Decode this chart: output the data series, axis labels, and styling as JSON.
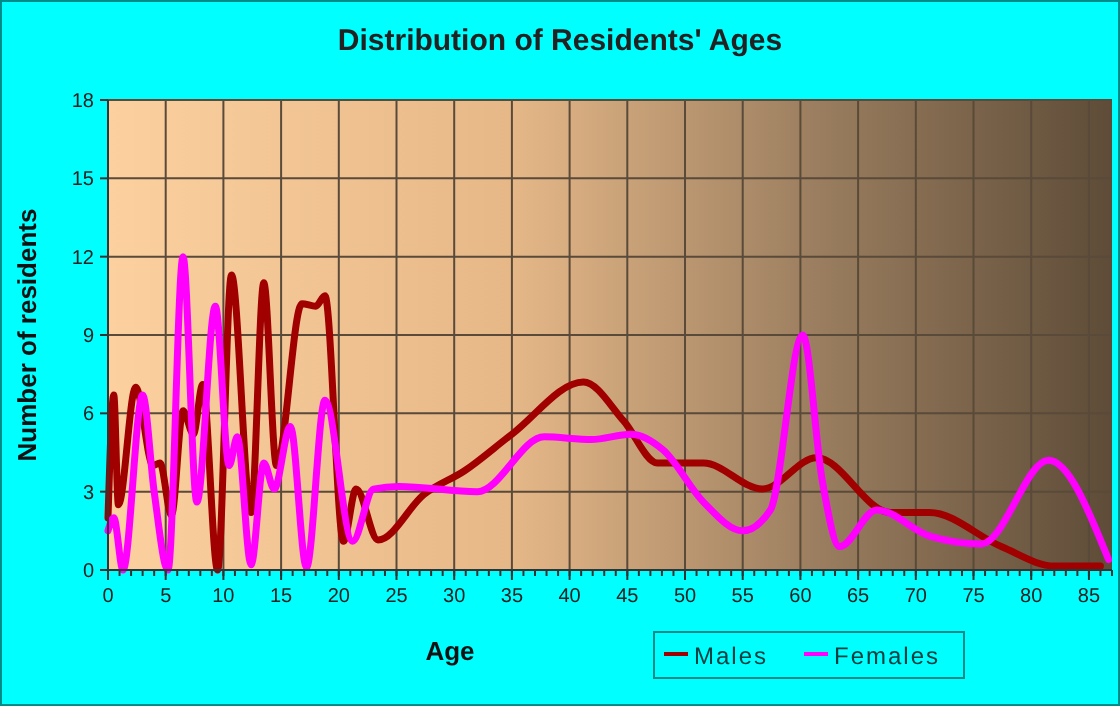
{
  "chart_data": {
    "type": "line",
    "title": "Distribution of Residents' Ages",
    "xlabel": "Age",
    "ylabel": "Number of residents",
    "xlim": [
      0,
      87
    ],
    "ylim": [
      0,
      18
    ],
    "xticks": [
      0,
      5,
      10,
      15,
      20,
      25,
      30,
      35,
      40,
      45,
      50,
      55,
      60,
      65,
      70,
      75,
      80,
      85
    ],
    "yticks": [
      0,
      3,
      6,
      9,
      12,
      15,
      18
    ],
    "grid": true,
    "legend": "bottom right",
    "marker": "none",
    "line_style": "solid",
    "series": [
      {
        "name": "Males",
        "color": "#a00000",
        "x": [
          0,
          0.5,
          0.9,
          2.4,
          3.9,
          4.5,
          5.5,
          6.5,
          7.4,
          8.2,
          9.5,
          10.7,
          12.4,
          13.5,
          14.6,
          16.8,
          18,
          18.8,
          20.4,
          21.5,
          23.4,
          27.4,
          30.9,
          35,
          41.2,
          44.7,
          47.6,
          51.6,
          56.7,
          61.4,
          67.8,
          71.2,
          77.4,
          82,
          86
        ],
        "values": [
          2,
          6.7,
          2.5,
          7,
          4,
          4.1,
          2.1,
          6.1,
          5.2,
          7.1,
          0,
          11.3,
          2.2,
          11,
          4,
          10.2,
          10.1,
          10.5,
          1.1,
          3.1,
          1.15,
          2.9,
          3.8,
          5.2,
          7.2,
          5.7,
          4.1,
          4.1,
          3.1,
          4.3,
          2.2,
          2.2,
          0.9,
          0.15,
          0.15
        ]
      },
      {
        "name": "Females",
        "color": "#ff00ff",
        "x": [
          0,
          0.5,
          1.3,
          3,
          4,
          5.2,
          6.5,
          7.7,
          9.3,
          10.5,
          11.2,
          12.4,
          13.5,
          14.4,
          15.8,
          17.2,
          18.8,
          21.2,
          23,
          25.2,
          32,
          37.8,
          41.9,
          45.3,
          48.1,
          51.6,
          55,
          57.4,
          60.2,
          61.9,
          63.4,
          66.6,
          71.2,
          75.7,
          81.5,
          86.7
        ],
        "values": [
          1.5,
          2,
          0,
          6.7,
          3,
          0,
          12,
          2.6,
          10.1,
          4,
          5.1,
          0.2,
          4.1,
          3.1,
          5.5,
          0.1,
          6.5,
          1.1,
          3.1,
          3.2,
          3,
          5.1,
          5,
          5.2,
          4.6,
          2.6,
          1.5,
          2.3,
          9,
          3.4,
          0.9,
          2.3,
          1.3,
          1,
          4.2,
          0.4
        ]
      }
    ]
  }
}
